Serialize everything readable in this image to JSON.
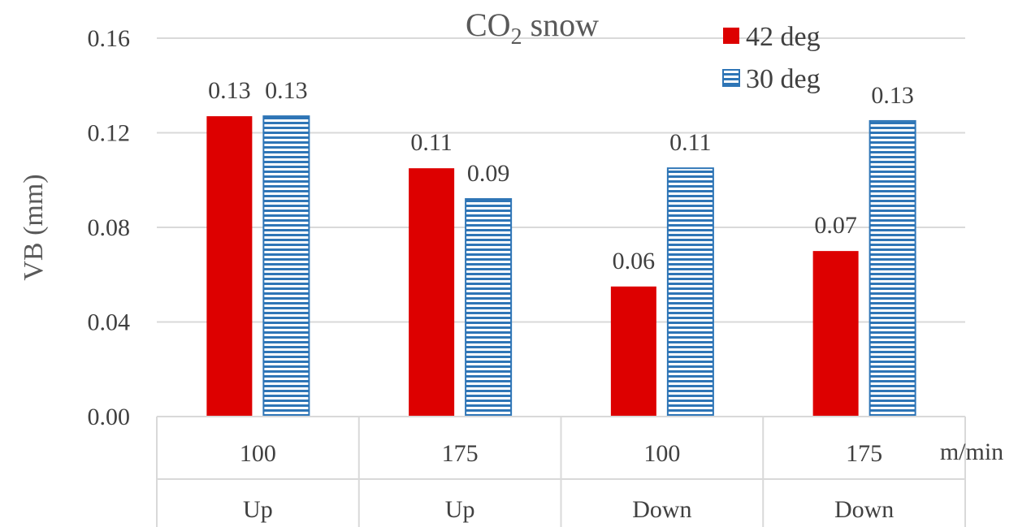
{
  "chart_data": {
    "type": "bar",
    "title": "CO2 snow",
    "title_main": "CO",
    "title_sub": "2",
    "title_rest": " snow",
    "ylabel": "VB (mm)",
    "xunit": "m/min",
    "categories": [
      {
        "speed": "100",
        "direction": "Up"
      },
      {
        "speed": "175",
        "direction": "Up"
      },
      {
        "speed": "100",
        "direction": "Down"
      },
      {
        "speed": "175",
        "direction": "Down"
      }
    ],
    "series": [
      {
        "name": "42 deg",
        "color": "#dd0000",
        "pattern": "solid",
        "values": [
          0.127,
          0.105,
          0.055,
          0.07
        ],
        "labels": [
          "0.13",
          "0.11",
          "0.06",
          "0.07"
        ]
      },
      {
        "name": "30 deg",
        "color": "#2e75b6",
        "pattern": "horizontal-stripes",
        "values": [
          0.127,
          0.092,
          0.105,
          0.125
        ],
        "labels": [
          "0.13",
          "0.09",
          "0.11",
          "0.13"
        ]
      }
    ],
    "ylim": [
      0,
      0.16
    ],
    "yticks": [
      "0.00",
      "0.04",
      "0.08",
      "0.12",
      "0.16"
    ],
    "grid": true,
    "legend_position": "top-right"
  }
}
